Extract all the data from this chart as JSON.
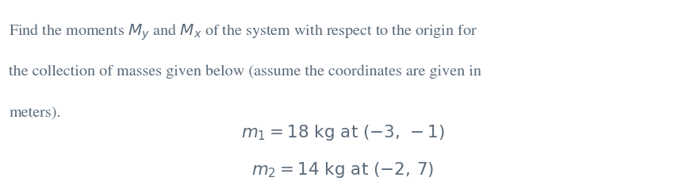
{
  "background_color": "#ffffff",
  "text_color": "#5a6a7a",
  "paragraph_text_parts": [
    {
      "text": "Find the moments ",
      "style": "normal"
    },
    {
      "text": "$M_y$",
      "style": "math"
    },
    {
      "text": " and ",
      "style": "normal"
    },
    {
      "text": "$M_x$",
      "style": "math"
    },
    {
      "text": " of the system with respect to the origin for",
      "style": "normal"
    }
  ],
  "para_line1": "Find the moments $M_y$ and $M_x$ of the system with respect to the origin for",
  "para_line2": "the collection of masses given below (assume the coordinates are given in",
  "para_line3": "meters).",
  "line1": "$m_1 = 18\\,\\mathrm{kg\\,at}\\,(-3,\\,-1)$",
  "line2": "$m_2 = 14\\,\\mathrm{kg\\,at}\\,(-2,\\,7)$",
  "fontsize_para": 14.5,
  "fontsize_mass": 15.5,
  "text_color_para": "#5b6b7b"
}
